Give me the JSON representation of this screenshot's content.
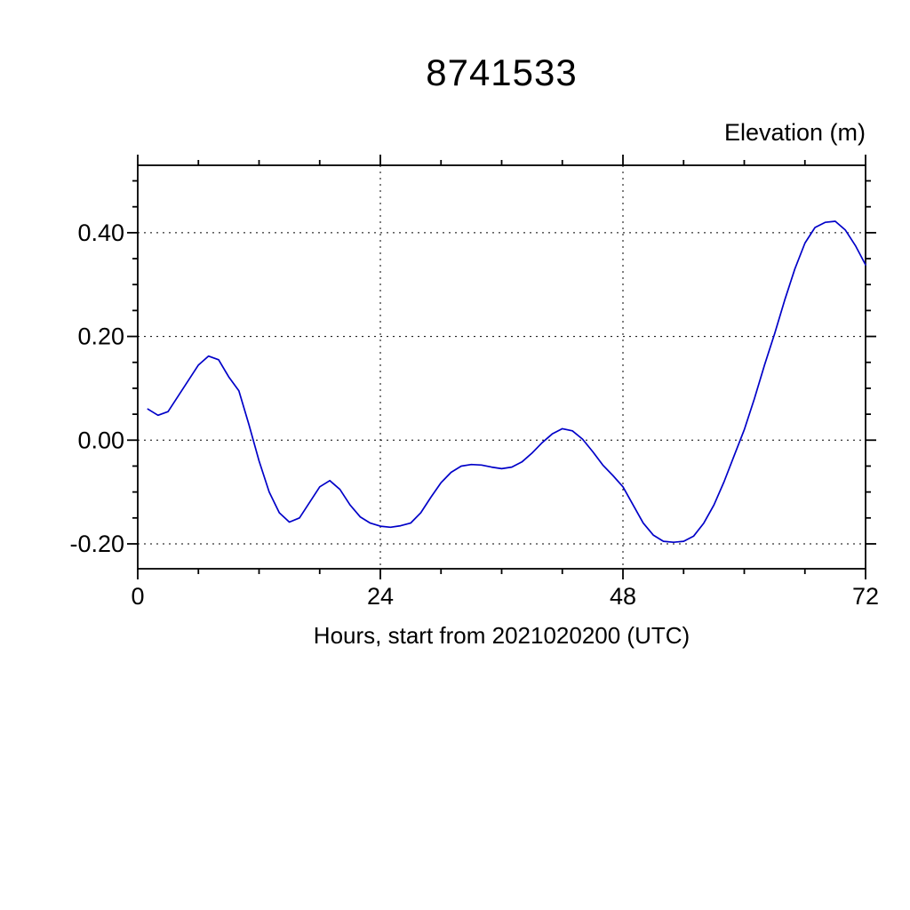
{
  "page": {
    "background": "#ffffff"
  },
  "chart": {
    "title": "8741533",
    "ylabel": "Elevation (m)",
    "xlabel": "Hours, start from 2021020200 (UTC)"
  },
  "chart_data": {
    "type": "line",
    "title": "8741533",
    "xlabel": "Hours, start from 2021020200 (UTC)",
    "ylabel": "Elevation (m)",
    "xlim": [
      0,
      72
    ],
    "ylim": [
      -0.248,
      0.53
    ],
    "x_major_ticks": [
      0,
      24,
      48,
      72
    ],
    "x_tick_labels": [
      "0",
      "24",
      "48",
      "72"
    ],
    "x_minor_step": 6,
    "y_major_ticks": [
      -0.2,
      0.0,
      0.2,
      0.4
    ],
    "y_tick_labels": [
      "-0.20",
      "0.00",
      "0.20",
      "0.40"
    ],
    "y_minor_step": 0.05,
    "grid": "dashed-at-major-ticks",
    "legend": "none",
    "line_color": "#0000c8",
    "frame_color": "#000000",
    "series": [
      {
        "name": "elevation",
        "x": [
          1,
          2,
          3,
          4,
          5,
          6,
          7,
          8,
          9,
          10,
          11,
          12,
          13,
          14,
          15,
          16,
          17,
          18,
          19,
          20,
          21,
          22,
          23,
          24,
          25,
          26,
          27,
          28,
          29,
          30,
          31,
          32,
          33,
          34,
          35,
          36,
          37,
          38,
          39,
          40,
          41,
          42,
          43,
          44,
          45,
          46,
          47,
          48,
          49,
          50,
          51,
          52,
          53,
          54,
          55,
          56,
          57,
          58,
          59,
          60,
          61,
          62,
          63,
          64,
          65,
          66,
          67,
          68,
          69,
          70,
          71,
          72
        ],
        "y": [
          0.06,
          0.048,
          0.055,
          0.085,
          0.115,
          0.145,
          0.162,
          0.155,
          0.122,
          0.095,
          0.03,
          -0.04,
          -0.1,
          -0.14,
          -0.158,
          -0.15,
          -0.12,
          -0.09,
          -0.078,
          -0.095,
          -0.125,
          -0.148,
          -0.16,
          -0.166,
          -0.168,
          -0.165,
          -0.16,
          -0.14,
          -0.11,
          -0.082,
          -0.062,
          -0.05,
          -0.047,
          -0.048,
          -0.052,
          -0.055,
          -0.052,
          -0.042,
          -0.025,
          -0.005,
          0.012,
          0.022,
          0.018,
          0.002,
          -0.022,
          -0.048,
          -0.068,
          -0.09,
          -0.125,
          -0.16,
          -0.183,
          -0.195,
          -0.197,
          -0.195,
          -0.185,
          -0.16,
          -0.125,
          -0.08,
          -0.03,
          0.02,
          0.08,
          0.145,
          0.205,
          0.27,
          0.33,
          0.38,
          0.41,
          0.42,
          0.422,
          0.405,
          0.375,
          0.338
        ]
      }
    ]
  }
}
